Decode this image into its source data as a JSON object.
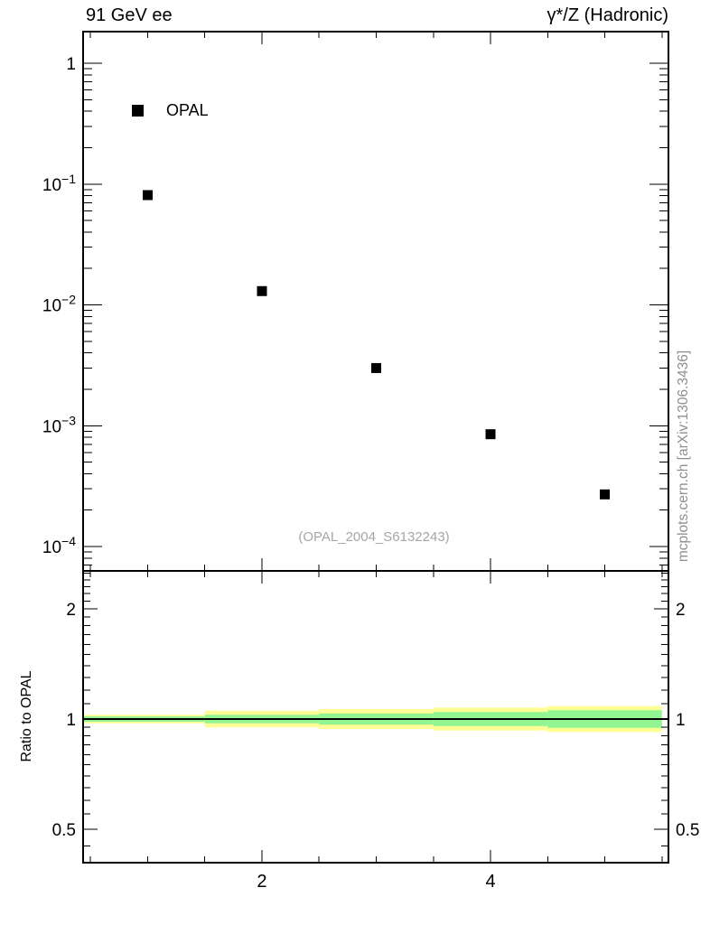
{
  "titles": {
    "left": "91 GeV ee",
    "right": "γ*/Z (Hadronic)"
  },
  "legend": {
    "label": "OPAL",
    "marker": "filled-square-icon",
    "marker_color": "#000000"
  },
  "watermark": "(OPAL_2004_S6132243)",
  "side_note": "mcplots.cern.ch [arXiv:1306.3436]",
  "colors": {
    "foreground": "#000000",
    "gray_text": "#969696",
    "watermark_gray": "#a6a6a6",
    "band_outer_yellow": "#ffff96",
    "band_inner_green": "#91f591",
    "marker_black": "#000000"
  },
  "chart_data": [
    {
      "type": "scatter",
      "panel": "main",
      "title": "91 GeV ee  /  γ*/Z (Hadronic)",
      "xlabel": "",
      "ylabel": "",
      "xscale": "linear",
      "yscale": "log",
      "xlim": [
        0.435,
        5.557
      ],
      "ylim": [
        6.3e-05,
        1.83
      ],
      "grid": false,
      "legend_position": "top-left",
      "series": [
        {
          "name": "OPAL",
          "marker": "filled-square",
          "color": "#000000",
          "x": [
            1,
            2,
            3,
            4,
            5
          ],
          "y": [
            0.081,
            0.013,
            0.003,
            0.00085,
            0.00027
          ]
        }
      ],
      "x_major_ticks": [
        2,
        4
      ],
      "x_major_tick_labels": [
        "2",
        "4"
      ],
      "x_minor_ticks": [
        0.5,
        1,
        1.5,
        2.5,
        3,
        3.5,
        4.5,
        5,
        5.5
      ],
      "y_major_ticks": [
        1,
        0.1,
        0.01,
        0.001,
        0.0001
      ],
      "y_major_tick_labels": [
        "1",
        "10^−1",
        "10^−2",
        "10^−3",
        "10^−4"
      ]
    },
    {
      "type": "area",
      "panel": "ratio",
      "ylabel": "Ratio to OPAL",
      "yscale": "log",
      "ylim": [
        0.405,
        2.54
      ],
      "reference_line_y": 1,
      "y_major_ticks": [
        2,
        1,
        0.5
      ],
      "y_major_tick_labels": [
        "2",
        "1",
        "0.5"
      ],
      "y_minor_ticks": [
        0.45,
        0.5,
        0.55,
        0.6,
        0.65,
        0.7,
        0.75,
        0.8,
        0.85,
        0.9,
        0.95,
        1.1,
        1.2,
        1.3,
        1.4,
        1.5,
        1.6,
        1.7,
        1.8,
        1.9,
        2.1,
        2.2,
        2.3,
        2.4,
        2.5
      ],
      "bands": [
        {
          "x0": 0.435,
          "x1": 1.5,
          "outer_halfwidth": 0.027,
          "inner_halfwidth": 0.017
        },
        {
          "x0": 1.5,
          "x1": 2.5,
          "outer_halfwidth": 0.054,
          "inner_halfwidth": 0.027
        },
        {
          "x0": 2.5,
          "x1": 3.5,
          "outer_halfwidth": 0.065,
          "inner_halfwidth": 0.036
        },
        {
          "x0": 3.5,
          "x1": 4.5,
          "outer_halfwidth": 0.075,
          "inner_halfwidth": 0.045
        },
        {
          "x0": 4.5,
          "x1": 5.5,
          "outer_halfwidth": 0.085,
          "inner_halfwidth": 0.057
        }
      ]
    }
  ]
}
